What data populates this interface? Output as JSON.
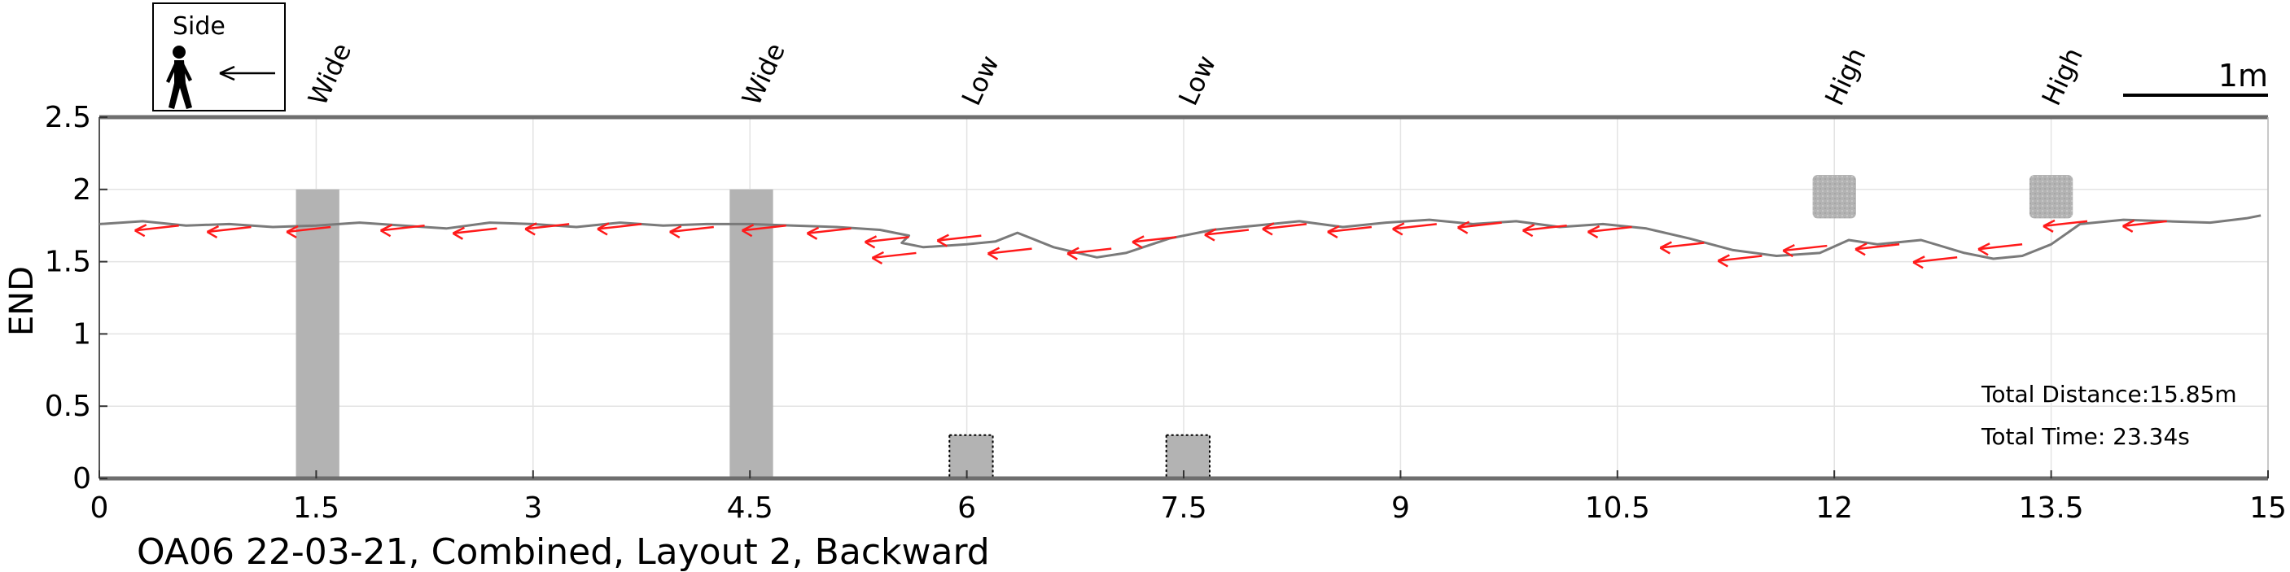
{
  "chart_data": {
    "type": "line",
    "title": "OA06 22-03-21, Combined, Layout 2, Backward",
    "xlabel": "",
    "ylabel": "END",
    "xlim": [
      0,
      15
    ],
    "ylim": [
      0,
      2.5
    ],
    "xticks": [
      "0",
      "1.5",
      "3",
      "4.5",
      "6",
      "7.5",
      "9",
      "10.5",
      "12",
      "13.5",
      "15"
    ],
    "yticks": [
      "0",
      "0.5",
      "1",
      "1.5",
      "2",
      "2.5"
    ],
    "grid": true,
    "scale_bar_label": "1m",
    "legend_box": {
      "label": "Side",
      "icons": [
        "walking-person-icon",
        "left-arrow-icon"
      ]
    },
    "stats": {
      "distance": "Total Distance:15.85m",
      "time": "Total Time: 23.34s"
    },
    "obstacles": [
      {
        "label": "Wide",
        "x0": 1.36,
        "x1": 1.66,
        "y0": 0,
        "y1": 2.0,
        "style": "solid"
      },
      {
        "label": "Wide",
        "x0": 4.36,
        "x1": 4.66,
        "y0": 0,
        "y1": 2.0,
        "style": "solid"
      },
      {
        "label": "Low",
        "x0": 5.88,
        "x1": 6.18,
        "y0": 0,
        "y1": 0.3,
        "style": "dotted"
      },
      {
        "label": "Low",
        "x0": 7.38,
        "x1": 7.68,
        "y0": 0,
        "y1": 0.3,
        "style": "dotted"
      },
      {
        "label": "High",
        "x0": 11.85,
        "x1": 12.15,
        "y0": 1.8,
        "y1": 2.1,
        "style": "textured"
      },
      {
        "label": "High",
        "x0": 13.35,
        "x1": 13.65,
        "y0": 1.8,
        "y1": 2.1,
        "style": "textured"
      }
    ],
    "series": [
      {
        "x": [
          0,
          0.3,
          0.6,
          0.9,
          1.2,
          1.5,
          1.8,
          2.1,
          2.4,
          2.7,
          3.0,
          3.3,
          3.6,
          3.9,
          4.2,
          4.5,
          4.8,
          5.1,
          5.4,
          5.6,
          5.55,
          5.7,
          6.0,
          6.2,
          6.35,
          6.6,
          6.9,
          7.1,
          7.4,
          7.7,
          8.0,
          8.3,
          8.6,
          8.9,
          9.2,
          9.5,
          9.8,
          10.1,
          10.4,
          10.7,
          11.0,
          11.3,
          11.6,
          11.9,
          12.1,
          12.3,
          12.6,
          12.9,
          13.1,
          13.3,
          13.5,
          13.7,
          14.0,
          14.3,
          14.6,
          14.85,
          14.95
        ],
        "y": [
          1.76,
          1.78,
          1.75,
          1.76,
          1.74,
          1.75,
          1.77,
          1.75,
          1.73,
          1.77,
          1.76,
          1.74,
          1.77,
          1.75,
          1.76,
          1.76,
          1.75,
          1.74,
          1.72,
          1.68,
          1.63,
          1.6,
          1.62,
          1.64,
          1.7,
          1.6,
          1.53,
          1.56,
          1.66,
          1.72,
          1.75,
          1.78,
          1.74,
          1.77,
          1.79,
          1.76,
          1.78,
          1.74,
          1.76,
          1.73,
          1.66,
          1.58,
          1.54,
          1.56,
          1.65,
          1.62,
          1.65,
          1.56,
          1.52,
          1.54,
          1.62,
          1.76,
          1.79,
          1.78,
          1.77,
          1.8,
          1.82
        ]
      }
    ],
    "arrows": [
      [
        0.55,
        1.75
      ],
      [
        1.05,
        1.74
      ],
      [
        1.6,
        1.74
      ],
      [
        2.25,
        1.75
      ],
      [
        2.75,
        1.73
      ],
      [
        3.25,
        1.76
      ],
      [
        3.75,
        1.76
      ],
      [
        4.25,
        1.74
      ],
      [
        4.75,
        1.75
      ],
      [
        5.2,
        1.73
      ],
      [
        5.6,
        1.67
      ],
      [
        5.65,
        1.56
      ],
      [
        6.1,
        1.68
      ],
      [
        6.45,
        1.59
      ],
      [
        7.0,
        1.59
      ],
      [
        7.45,
        1.67
      ],
      [
        7.95,
        1.72
      ],
      [
        8.35,
        1.76
      ],
      [
        8.8,
        1.74
      ],
      [
        9.25,
        1.76
      ],
      [
        9.7,
        1.77
      ],
      [
        10.15,
        1.75
      ],
      [
        10.6,
        1.74
      ],
      [
        11.1,
        1.63
      ],
      [
        11.5,
        1.54
      ],
      [
        11.95,
        1.61
      ],
      [
        12.45,
        1.62
      ],
      [
        12.85,
        1.53
      ],
      [
        13.3,
        1.62
      ],
      [
        13.75,
        1.78
      ],
      [
        14.3,
        1.78
      ]
    ]
  }
}
